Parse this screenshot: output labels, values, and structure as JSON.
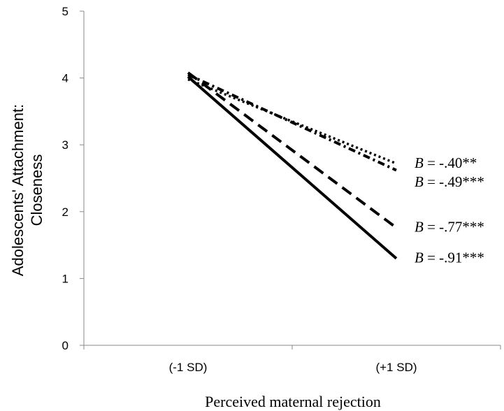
{
  "chart_data": {
    "type": "line",
    "categories": [
      "(-1 SD)",
      "(+1 SD)"
    ],
    "series": [
      {
        "values": [
          3.98,
          2.72
        ],
        "style": "dotted",
        "annotation_b": "B",
        "annotation_value": " = -.40**"
      },
      {
        "values": [
          4.05,
          2.62
        ],
        "style": "dash-dot",
        "annotation_b": "B",
        "annotation_value": " = -.49***"
      },
      {
        "values": [
          4.08,
          1.76
        ],
        "style": "dashed",
        "annotation_b": "B",
        "annotation_value": " = -.77***"
      },
      {
        "values": [
          4.02,
          1.3
        ],
        "style": "solid",
        "annotation_b": "B",
        "annotation_value": " = -.91***"
      }
    ],
    "xlabel": "Perceived maternal rejection",
    "ylabel_line1": "Adolescents' Attachment:",
    "ylabel_line2": "Closeness",
    "ylim": [
      0,
      5
    ],
    "yticks": [
      "0",
      "1",
      "2",
      "3",
      "4",
      "5"
    ],
    "grid": false,
    "line_color": "#000000"
  }
}
